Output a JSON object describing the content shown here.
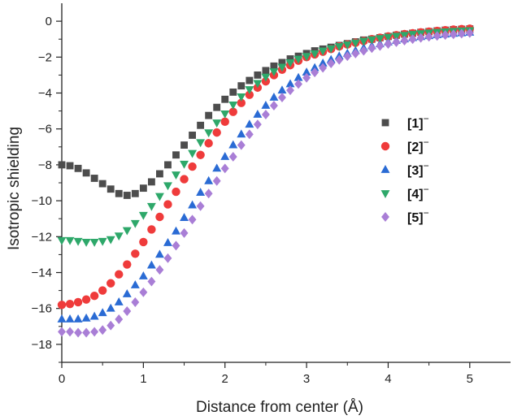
{
  "chart_data": {
    "type": "scatter",
    "title": "",
    "xlabel": "Distance from center (Å)",
    "ylabel": "Isotropic shielding",
    "xlim": [
      0,
      5.5
    ],
    "ylim": [
      -19,
      1
    ],
    "x_ticks": [
      0,
      1,
      2,
      3,
      4,
      5
    ],
    "y_ticks": [
      0,
      -2,
      -4,
      -6,
      -8,
      -10,
      -12,
      -14,
      -16,
      -18
    ],
    "grid": false,
    "legend_position": "center-right",
    "series": [
      {
        "name": "[1]⁻",
        "label_main": "[1]",
        "label_sup": "−",
        "marker": "square",
        "color": "#4d4d4d",
        "x": [
          0,
          0.1,
          0.2,
          0.3,
          0.4,
          0.5,
          0.6,
          0.7,
          0.8,
          0.9,
          1.0,
          1.1,
          1.2,
          1.3,
          1.4,
          1.5,
          1.6,
          1.7,
          1.8,
          1.9,
          2.0,
          2.1,
          2.2,
          2.3,
          2.4,
          2.5,
          2.6,
          2.7,
          2.8,
          2.9,
          3.0,
          3.1,
          3.2,
          3.3,
          3.4,
          3.5,
          3.6,
          3.7,
          3.8,
          3.9,
          4.0,
          4.1,
          4.2,
          4.3,
          4.4,
          4.5,
          4.6,
          4.7,
          4.8,
          4.9,
          5.0
        ],
        "y": [
          -8.0,
          -8.05,
          -8.2,
          -8.45,
          -8.75,
          -9.05,
          -9.35,
          -9.6,
          -9.7,
          -9.6,
          -9.3,
          -8.95,
          -8.5,
          -8.0,
          -7.45,
          -6.9,
          -6.35,
          -5.8,
          -5.25,
          -4.8,
          -4.35,
          -3.95,
          -3.6,
          -3.3,
          -3.0,
          -2.75,
          -2.5,
          -2.3,
          -2.1,
          -1.95,
          -1.8,
          -1.65,
          -1.55,
          -1.45,
          -1.35,
          -1.25,
          -1.15,
          -1.05,
          -1.0,
          -0.92,
          -0.85,
          -0.78,
          -0.72,
          -0.67,
          -0.62,
          -0.58,
          -0.54,
          -0.5,
          -0.47,
          -0.45,
          -0.43
        ]
      },
      {
        "name": "[2]⁻",
        "label_main": "[2]",
        "label_sup": "−",
        "marker": "circle",
        "color": "#ef3b3b",
        "x": [
          0,
          0.1,
          0.2,
          0.3,
          0.4,
          0.5,
          0.6,
          0.7,
          0.8,
          0.9,
          1.0,
          1.1,
          1.2,
          1.3,
          1.4,
          1.5,
          1.6,
          1.7,
          1.8,
          1.9,
          2.0,
          2.1,
          2.2,
          2.3,
          2.4,
          2.5,
          2.6,
          2.7,
          2.8,
          2.9,
          3.0,
          3.1,
          3.2,
          3.3,
          3.4,
          3.5,
          3.6,
          3.7,
          3.8,
          3.9,
          4.0,
          4.1,
          4.2,
          4.3,
          4.4,
          4.5,
          4.6,
          4.7,
          4.8,
          4.9,
          5.0
        ],
        "y": [
          -15.8,
          -15.75,
          -15.65,
          -15.5,
          -15.3,
          -15.0,
          -14.6,
          -14.1,
          -13.55,
          -12.95,
          -12.3,
          -11.6,
          -10.9,
          -10.2,
          -9.5,
          -8.8,
          -8.1,
          -7.45,
          -6.8,
          -6.2,
          -5.6,
          -5.05,
          -4.55,
          -4.1,
          -3.7,
          -3.35,
          -3.0,
          -2.7,
          -2.45,
          -2.2,
          -2.0,
          -1.85,
          -1.7,
          -1.55,
          -1.4,
          -1.3,
          -1.2,
          -1.1,
          -1.0,
          -0.92,
          -0.85,
          -0.78,
          -0.72,
          -0.67,
          -0.62,
          -0.58,
          -0.54,
          -0.5,
          -0.47,
          -0.44,
          -0.42
        ]
      },
      {
        "name": "[3]⁻",
        "label_main": "[3]",
        "label_sup": "−",
        "marker": "triangle-up",
        "color": "#2a6bd4",
        "x": [
          0,
          0.1,
          0.2,
          0.3,
          0.4,
          0.5,
          0.6,
          0.7,
          0.8,
          0.9,
          1.0,
          1.1,
          1.2,
          1.3,
          1.4,
          1.5,
          1.6,
          1.7,
          1.8,
          1.9,
          2.0,
          2.1,
          2.2,
          2.3,
          2.4,
          2.5,
          2.6,
          2.7,
          2.8,
          2.9,
          3.0,
          3.1,
          3.2,
          3.3,
          3.4,
          3.5,
          3.6,
          3.7,
          3.8,
          3.9,
          4.0,
          4.1,
          4.2,
          4.3,
          4.4,
          4.5,
          4.6,
          4.7,
          4.8,
          4.9,
          5.0
        ],
        "y": [
          -16.6,
          -16.6,
          -16.6,
          -16.55,
          -16.45,
          -16.25,
          -16.0,
          -15.65,
          -15.2,
          -14.7,
          -14.2,
          -13.6,
          -13.0,
          -12.35,
          -11.7,
          -10.95,
          -10.25,
          -9.55,
          -8.9,
          -8.2,
          -7.55,
          -6.9,
          -6.3,
          -5.75,
          -5.2,
          -4.7,
          -4.25,
          -3.85,
          -3.5,
          -3.15,
          -2.85,
          -2.6,
          -2.35,
          -2.15,
          -1.95,
          -1.8,
          -1.65,
          -1.5,
          -1.38,
          -1.27,
          -1.17,
          -1.08,
          -1.0,
          -0.93,
          -0.87,
          -0.82,
          -0.77,
          -0.73,
          -0.69,
          -0.66,
          -0.63
        ]
      },
      {
        "name": "[4]⁻",
        "label_main": "[4]",
        "label_sup": "−",
        "marker": "triangle-down",
        "color": "#2ea86a",
        "x": [
          0,
          0.1,
          0.2,
          0.3,
          0.4,
          0.5,
          0.6,
          0.7,
          0.8,
          0.9,
          1.0,
          1.1,
          1.2,
          1.3,
          1.4,
          1.5,
          1.6,
          1.7,
          1.8,
          1.9,
          2.0,
          2.1,
          2.2,
          2.3,
          2.4,
          2.5,
          2.6,
          2.7,
          2.8,
          2.9,
          3.0,
          3.1,
          3.2,
          3.3,
          3.4,
          3.5,
          3.6,
          3.7,
          3.8,
          3.9,
          4.0,
          4.1,
          4.2,
          4.3,
          4.4,
          4.5,
          4.6,
          4.7,
          4.8,
          4.9,
          5.0
        ],
        "y": [
          -12.2,
          -12.2,
          -12.25,
          -12.3,
          -12.3,
          -12.25,
          -12.15,
          -11.95,
          -11.65,
          -11.25,
          -10.8,
          -10.3,
          -9.75,
          -9.15,
          -8.55,
          -7.95,
          -7.35,
          -6.75,
          -6.2,
          -5.65,
          -5.15,
          -4.65,
          -4.2,
          -3.8,
          -3.45,
          -3.1,
          -2.8,
          -2.55,
          -2.3,
          -2.1,
          -1.95,
          -1.8,
          -1.65,
          -1.52,
          -1.4,
          -1.3,
          -1.2,
          -1.1,
          -1.02,
          -0.95,
          -0.88,
          -0.82,
          -0.77,
          -0.72,
          -0.68,
          -0.64,
          -0.61,
          -0.58,
          -0.55,
          -0.53,
          -0.51
        ]
      },
      {
        "name": "[5]⁻",
        "label_main": "[5]",
        "label_sup": "−",
        "marker": "diamond",
        "color": "#a97ed6",
        "x": [
          0,
          0.1,
          0.2,
          0.3,
          0.4,
          0.5,
          0.6,
          0.7,
          0.8,
          0.9,
          1.0,
          1.1,
          1.2,
          1.3,
          1.4,
          1.5,
          1.6,
          1.7,
          1.8,
          1.9,
          2.0,
          2.1,
          2.2,
          2.3,
          2.4,
          2.5,
          2.6,
          2.7,
          2.8,
          2.9,
          3.0,
          3.1,
          3.2,
          3.3,
          3.4,
          3.5,
          3.6,
          3.7,
          3.8,
          3.9,
          4.0,
          4.1,
          4.2,
          4.3,
          4.4,
          4.5,
          4.6,
          4.7,
          4.8,
          4.9,
          5.0
        ],
        "y": [
          -17.3,
          -17.3,
          -17.35,
          -17.35,
          -17.3,
          -17.2,
          -16.95,
          -16.6,
          -16.15,
          -15.65,
          -15.1,
          -14.5,
          -13.85,
          -13.2,
          -12.5,
          -11.8,
          -11.05,
          -10.3,
          -9.6,
          -8.9,
          -8.2,
          -7.55,
          -6.9,
          -6.3,
          -5.75,
          -5.2,
          -4.7,
          -4.25,
          -3.85,
          -3.5,
          -3.15,
          -2.85,
          -2.6,
          -2.35,
          -2.15,
          -1.95,
          -1.8,
          -1.65,
          -1.5,
          -1.38,
          -1.27,
          -1.17,
          -1.08,
          -1.0,
          -0.93,
          -0.87,
          -0.82,
          -0.77,
          -0.73,
          -0.69,
          -0.66
        ]
      }
    ]
  }
}
